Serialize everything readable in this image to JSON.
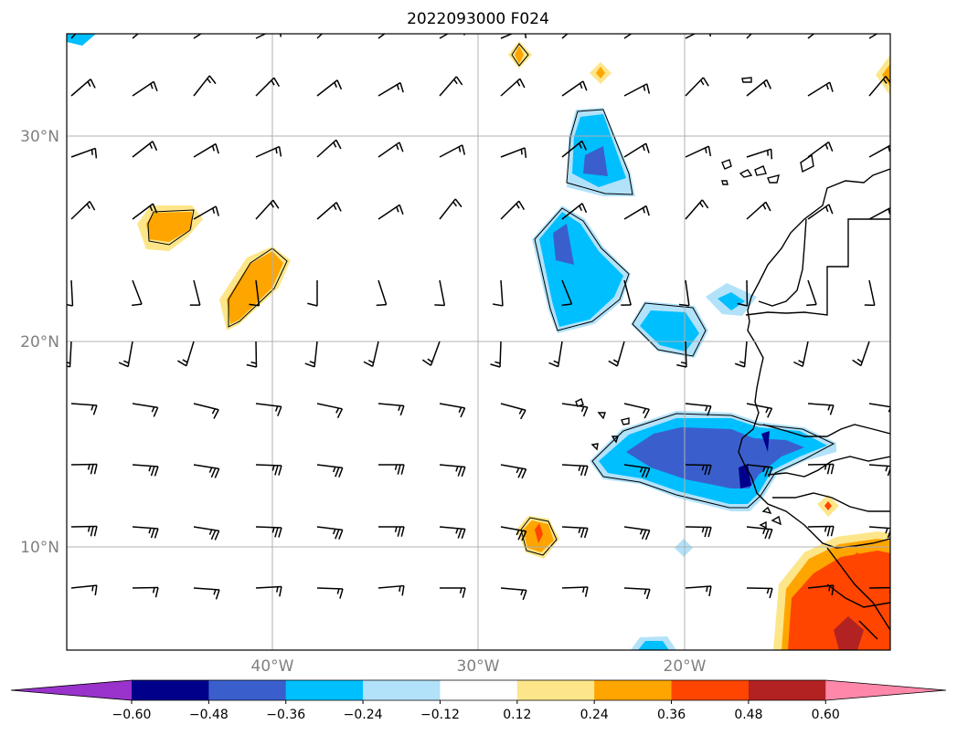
{
  "title": "2022093000 F024",
  "map": {
    "lat_labels": [
      "30°N",
      "20°N",
      "10°N"
    ],
    "lat_values": [
      30,
      20,
      10
    ],
    "lon_labels": [
      "40°W",
      "30°W",
      "20°W"
    ],
    "lon_values": [
      -40,
      -30,
      -20
    ],
    "extent": {
      "lon_min": -50,
      "lon_max": -10,
      "lat_min": 5,
      "lat_max": 35
    },
    "wind_barbs": "dense grid of wind barbs over the North Atlantic"
  },
  "colorbar": {
    "tick_labels": [
      "−0.60",
      "−0.48",
      "−0.36",
      "−0.24",
      "−0.12",
      "0.12",
      "0.24",
      "0.36",
      "0.48",
      "0.60"
    ],
    "levels": [
      -0.6,
      -0.48,
      -0.36,
      -0.24,
      -0.12,
      0.12,
      0.24,
      0.36,
      0.48,
      0.6
    ],
    "colors": [
      "#9933cc",
      "#00008b",
      "#3a5fcd",
      "#00bfff",
      "#b2e2fa",
      "#ffffff",
      "#fde68a",
      "#ffa500",
      "#ff4500",
      "#b22222",
      "#ff88aa"
    ]
  }
}
